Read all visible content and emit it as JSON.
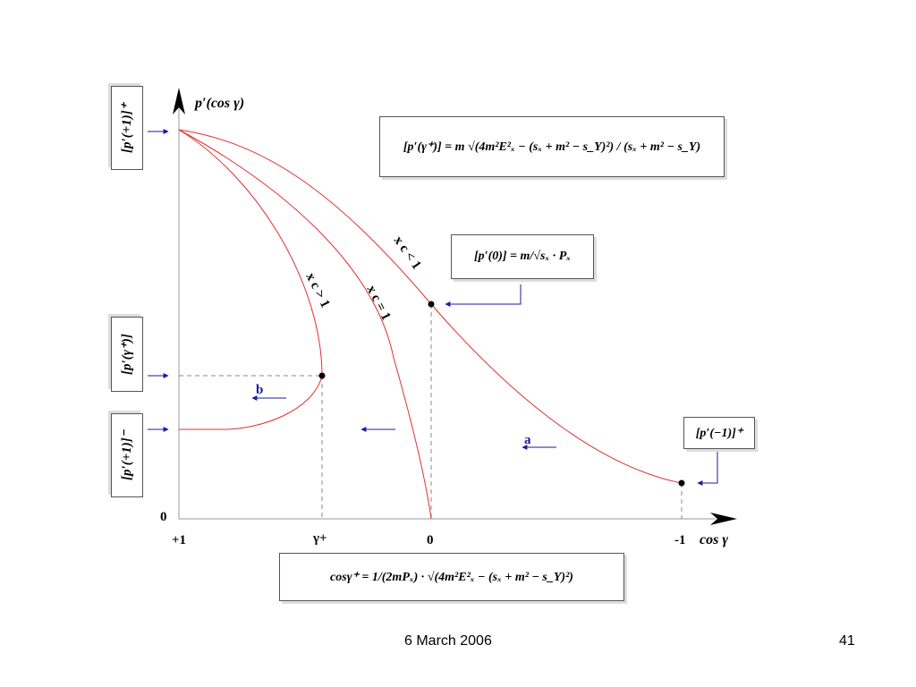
{
  "slide": {
    "footer_date": "6 March 2006",
    "page_number": "41"
  },
  "diagram": {
    "y_axis_label": "p′(cos γ)",
    "x_axis_label": "cos γ",
    "origin_label": "0",
    "x_ticks": [
      "+1",
      "γ+",
      "0",
      "-1"
    ],
    "curve_labels": {
      "xc_less": "x c < 1",
      "xc_equal": "x c = 1",
      "xc_greater": "x c > 1"
    },
    "arrow_labels": {
      "a": "a",
      "b": "b"
    },
    "left_boxes": {
      "top": "[p′(+1)]⁺",
      "middle": "[p′(γ⁺)]",
      "bottom": "[p′(+1)]⁻"
    },
    "formula_gamma": "[p′(γ⁺)] = m √(4m²E²ₓ − (sₓ + m² − s_Y)²) / (sₓ + m² − s_Y)",
    "formula_zero": "[p′(0)] = m/√sₓ · Pₓ",
    "formula_minus1": "[p′(−1)]⁺",
    "formula_cos": "cosγ⁺ = 1/(2mPₓ) · √(4m²E²ₓ − (sₓ + m² − s_Y)²)",
    "colors": {
      "curve": "#e03030",
      "arrow": "#1a1aa0",
      "axis": "#999999",
      "guide": "#888888"
    }
  }
}
